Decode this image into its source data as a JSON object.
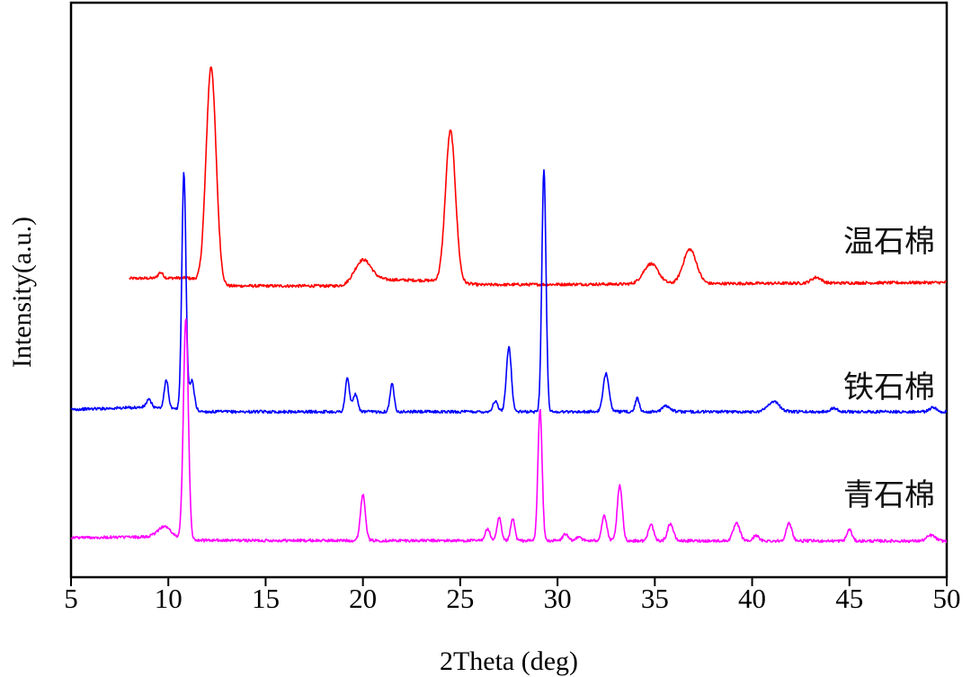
{
  "chart_data": {
    "type": "line",
    "title": "",
    "xlabel": "2Theta (deg)",
    "ylabel": "Intensity(a.u.)",
    "xlim": [
      5,
      50
    ],
    "ylim": [
      0,
      100
    ],
    "xticks": [
      5,
      10,
      15,
      20,
      25,
      30,
      35,
      40,
      45,
      50
    ],
    "xtick_labels": [
      "5",
      "10",
      "15",
      "20",
      "25",
      "30",
      "35",
      "40",
      "45",
      "50"
    ],
    "grid": false,
    "legend": "inline labels at right of each curve",
    "series": [
      {
        "name": "温石棉",
        "color": "#ff0000",
        "x_range": [
          8,
          50
        ],
        "baseline": [
          [
            8,
            52.0
          ],
          [
            11,
            52.1
          ],
          [
            13,
            50.7
          ],
          [
            19,
            50.7
          ],
          [
            21,
            51.8
          ],
          [
            24,
            51.6
          ],
          [
            26,
            50.9
          ],
          [
            50,
            51.3
          ]
        ],
        "peaks": [
          [
            9.6,
            1.0,
            0.3
          ],
          [
            12.2,
            37.6,
            0.6
          ],
          [
            20.0,
            4.0,
            1.0
          ],
          [
            24.5,
            26.3,
            0.6
          ],
          [
            34.8,
            3.5,
            0.9
          ],
          [
            36.8,
            6.0,
            0.8
          ],
          [
            43.3,
            1.0,
            0.6
          ]
        ]
      },
      {
        "name": "铁石棉",
        "color": "#0000ff",
        "x_range": [
          5,
          50
        ],
        "baseline": [
          [
            5,
            29.2
          ],
          [
            9,
            29.6
          ],
          [
            12,
            28.8
          ],
          [
            50,
            28.8
          ]
        ],
        "peaks": [
          [
            9.0,
            1.3,
            0.3
          ],
          [
            9.9,
            5.0,
            0.25
          ],
          [
            10.8,
            41.3,
            0.25
          ],
          [
            11.2,
            5.2,
            0.3
          ],
          [
            19.2,
            5.8,
            0.25
          ],
          [
            19.6,
            3.0,
            0.3
          ],
          [
            21.5,
            4.8,
            0.25
          ],
          [
            26.8,
            1.8,
            0.3
          ],
          [
            27.5,
            11.4,
            0.3
          ],
          [
            29.3,
            42.2,
            0.25
          ],
          [
            32.5,
            6.7,
            0.35
          ],
          [
            34.1,
            2.3,
            0.25
          ],
          [
            35.6,
            1.0,
            0.5
          ],
          [
            41.1,
            1.8,
            0.7
          ],
          [
            44.2,
            0.6,
            0.5
          ],
          [
            49.3,
            0.8,
            0.4
          ]
        ]
      },
      {
        "name": "青石棉",
        "color": "#ff00ff",
        "x_range": [
          5,
          50
        ],
        "baseline": [
          [
            5,
            6.9
          ],
          [
            9,
            7.0
          ],
          [
            12,
            6.4
          ],
          [
            50,
            6.3
          ]
        ],
        "peaks": [
          [
            9.8,
            2.0,
            0.8
          ],
          [
            10.9,
            38.2,
            0.3
          ],
          [
            20.0,
            8.0,
            0.3
          ],
          [
            26.4,
            2.0,
            0.3
          ],
          [
            27.0,
            4.0,
            0.25
          ],
          [
            27.7,
            3.8,
            0.25
          ],
          [
            29.1,
            23.0,
            0.25
          ],
          [
            30.4,
            1.2,
            0.3
          ],
          [
            31.1,
            0.8,
            0.3
          ],
          [
            32.4,
            4.4,
            0.3
          ],
          [
            33.2,
            9.6,
            0.3
          ],
          [
            34.8,
            3.0,
            0.3
          ],
          [
            35.8,
            3.0,
            0.35
          ],
          [
            39.2,
            3.0,
            0.4
          ],
          [
            40.2,
            1.0,
            0.3
          ],
          [
            41.9,
            3.0,
            0.35
          ],
          [
            45.0,
            2.0,
            0.3
          ],
          [
            49.2,
            1.0,
            0.5
          ]
        ]
      }
    ]
  }
}
